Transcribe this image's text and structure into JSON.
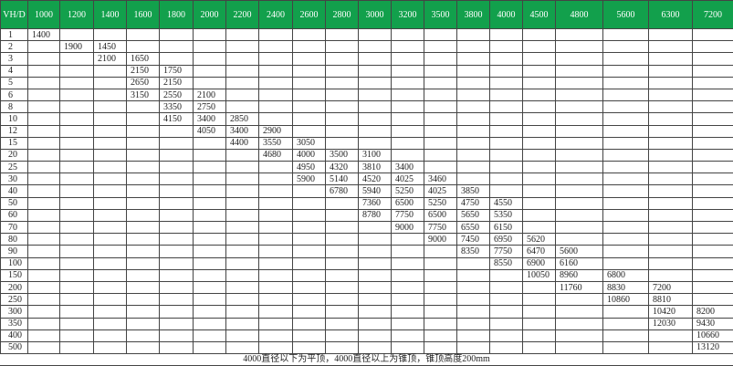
{
  "header": [
    "VH/D",
    "1000",
    "1200",
    "1400",
    "1600",
    "1800",
    "2000",
    "2200",
    "2400",
    "2600",
    "2800",
    "3000",
    "3200",
    "3500",
    "3800",
    "4000",
    "4500",
    "4800",
    "5600",
    "6300",
    "7200"
  ],
  "rows": [
    {
      "vh": "1",
      "cells": {
        "1000": "1400"
      }
    },
    {
      "vh": "2",
      "cells": {
        "1200": "1900",
        "1400": "1450"
      }
    },
    {
      "vh": "3",
      "cells": {
        "1400": "2100",
        "1600": "1650"
      }
    },
    {
      "vh": "4",
      "cells": {
        "1600": "2150",
        "1800": "1750"
      }
    },
    {
      "vh": "5",
      "cells": {
        "1600": "2650",
        "1800": "2150"
      }
    },
    {
      "vh": "6",
      "cells": {
        "1600": "3150",
        "1800": "2550",
        "2000": "2100"
      }
    },
    {
      "vh": "8",
      "cells": {
        "1800": "3350",
        "2000": "2750"
      }
    },
    {
      "vh": "10",
      "cells": {
        "1800": "4150",
        "2000": "3400",
        "2200": "2850"
      }
    },
    {
      "vh": "12",
      "cells": {
        "2000": "4050",
        "2200": "3400",
        "2400": "2900"
      }
    },
    {
      "vh": "15",
      "cells": {
        "2200": "4400",
        "2400": "3550",
        "2600": "3050"
      }
    },
    {
      "vh": "20",
      "cells": {
        "2400": "4680",
        "2600": "4000",
        "2800": "3500",
        "3000": "3100"
      }
    },
    {
      "vh": "25",
      "cells": {
        "2600": "4950",
        "2800": "4320",
        "3000": "3810",
        "3200": "3400"
      }
    },
    {
      "vh": "30",
      "cells": {
        "2600": "5900",
        "2800": "5140",
        "3000": "4520",
        "3200": "4025",
        "3500": "3460"
      }
    },
    {
      "vh": "40",
      "cells": {
        "2800": "6780",
        "3000": "5940",
        "3200": "5250",
        "3500": "4025",
        "3800": "3850"
      }
    },
    {
      "vh": "50",
      "cells": {
        "3000": "7360",
        "3200": "6500",
        "3500": "5250",
        "3800": "4750",
        "4000": "4550"
      }
    },
    {
      "vh": "60",
      "cells": {
        "3000": "8780",
        "3200": "7750",
        "3500": "6500",
        "3800": "5650",
        "4000": "5350"
      }
    },
    {
      "vh": "70",
      "cells": {
        "3200": "9000",
        "3500": "7750",
        "3800": "6550",
        "4000": "6150"
      }
    },
    {
      "vh": "80",
      "cells": {
        "3500": "9000",
        "3800": "7450",
        "4000": "6950",
        "4500": "5620"
      }
    },
    {
      "vh": "90",
      "cells": {
        "3800": "8350",
        "4000": "7750",
        "4500": "6470",
        "4800": "5600"
      }
    },
    {
      "vh": "100",
      "cells": {
        "4000": "8550",
        "4500": "6900",
        "4800": "6160"
      }
    },
    {
      "vh": "150",
      "cells": {
        "4500": "10050",
        "4800": "8960",
        "5600": "6800"
      }
    },
    {
      "vh": "200",
      "cells": {
        "4800": "11760",
        "5600": "8830",
        "6300": "7200"
      }
    },
    {
      "vh": "250",
      "cells": {
        "5600": "10860",
        "6300": "8810"
      }
    },
    {
      "vh": "300",
      "cells": {
        "6300": "10420",
        "7200": "8200"
      }
    },
    {
      "vh": "350",
      "cells": {
        "6300": "12030",
        "7200": "9430"
      }
    },
    {
      "vh": "400",
      "cells": {
        "7200": "10660"
      }
    },
    {
      "vh": "500",
      "cells": {
        "7200": "13120"
      }
    }
  ],
  "footer": "4000直径以下为平顶，4000直径以上为锥顶，锥顶高度200mm",
  "colors": {
    "header_bg": "#12a04c",
    "header_text": "#ffffff"
  }
}
